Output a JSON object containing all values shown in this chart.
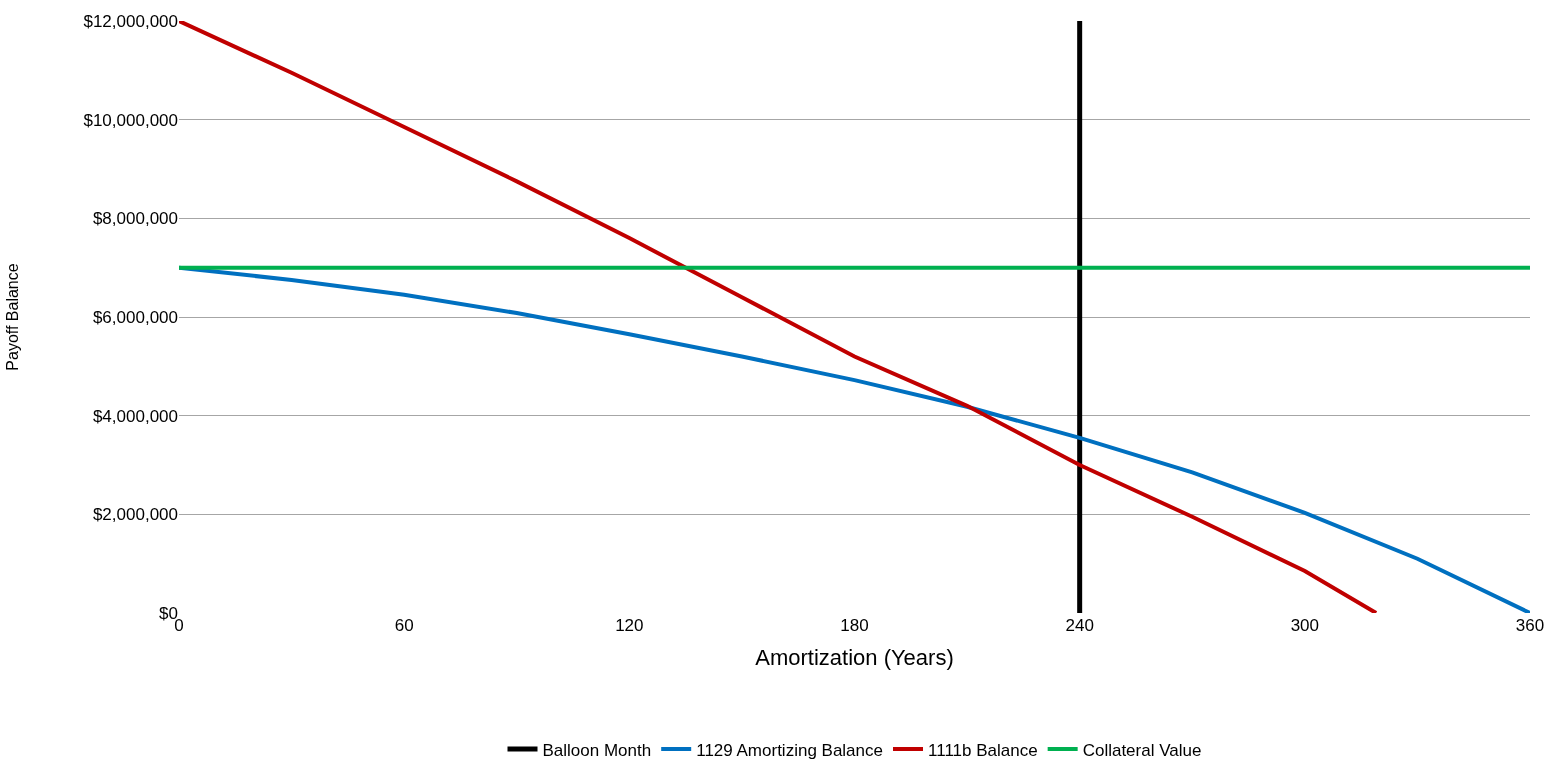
{
  "chart_data": {
    "type": "line",
    "xlabel": "Amortization (Years)",
    "ylabel": "Payoff Balance",
    "x": [
      0,
      30,
      60,
      90,
      120,
      150,
      180,
      210,
      240,
      270,
      300,
      330,
      360
    ],
    "series": [
      {
        "name": "Balloon Month",
        "color": "#000000",
        "x": [
          240,
          240
        ],
        "values": [
          0,
          12000000
        ]
      },
      {
        "name": "1129 Amortizing Balance",
        "color": "#0070c0",
        "values": [
          7000000,
          6750000,
          6450000,
          6080000,
          5650000,
          5200000,
          4720000,
          4180000,
          3550000,
          2850000,
          2030000,
          1100000,
          0
        ]
      },
      {
        "name": "1111b Balance",
        "color": "#c00000",
        "x": [
          0,
          30,
          60,
          90,
          120,
          150,
          180,
          210,
          240,
          270,
          300,
          319
        ],
        "values": [
          12000000,
          10950000,
          9850000,
          8750000,
          7600000,
          6400000,
          5200000,
          4200000,
          3000000,
          1950000,
          850000,
          0
        ]
      },
      {
        "name": "Collateral Value",
        "color": "#00b050",
        "x": [
          0,
          360
        ],
        "values": [
          7000000,
          7000000
        ]
      }
    ],
    "xlim": [
      0,
      360
    ],
    "xticks": [
      0,
      60,
      120,
      180,
      240,
      300,
      360
    ],
    "ylim": [
      0,
      12000000
    ],
    "yticks": [
      {
        "value": 0,
        "label": "$0"
      },
      {
        "value": 2000000,
        "label": "$2,000,000"
      },
      {
        "value": 4000000,
        "label": "$4,000,000"
      },
      {
        "value": 6000000,
        "label": "$6,000,000"
      },
      {
        "value": 8000000,
        "label": "$8,000,000"
      },
      {
        "value": 10000000,
        "label": "$10,000,000"
      },
      {
        "value": 12000000,
        "label": "$12,000,000"
      }
    ],
    "grid": "y",
    "legend": "bottom",
    "marker": "none",
    "line_style": "solid"
  }
}
